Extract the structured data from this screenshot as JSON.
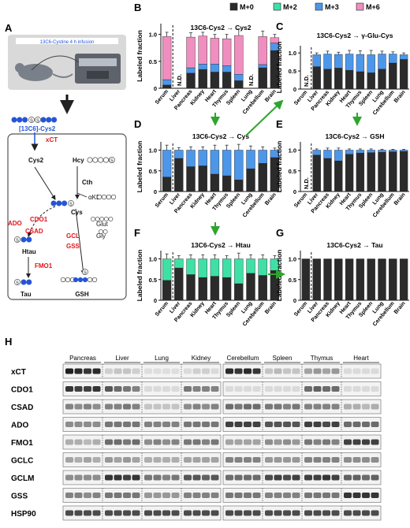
{
  "colors": {
    "m0": "#2b2b2b",
    "m2": "#3fe0a6",
    "m3": "#4d97ea",
    "m6": "#f08ec0",
    "red": "#e3141b",
    "green": "#2ea52e",
    "blue": "#2455d6",
    "grid": "#999999"
  },
  "legend": [
    {
      "label": "M+0",
      "color": "#2b2b2b"
    },
    {
      "label": "M+2",
      "color": "#3fe0a6"
    },
    {
      "label": "M+3",
      "color": "#4d97ea"
    },
    {
      "label": "M+6",
      "color": "#f08ec0"
    }
  ],
  "panels": {
    "A": "A",
    "B": "B",
    "C": "C",
    "D": "D",
    "E": "E",
    "F": "F",
    "G": "G",
    "H": "H"
  },
  "infusion": {
    "title": "13C6-Cystine 4 h infusion"
  },
  "pathway": {
    "cys2_label": "[13C6]-Cys2",
    "xct": "xCT",
    "cys2_in": "Cys2",
    "hcy": "Hcy",
    "cth": "Cth",
    "akb": "αKB",
    "cys": "Cys",
    "ado": "ADO",
    "cdo1": "CDO1",
    "csad": "CSAD",
    "htau": "Htau",
    "fmo1": "FMO1",
    "tau": "Tau",
    "gcl": "GCL",
    "gss": "GSS",
    "glut": "Glut",
    "gly": "Gly",
    "gsh": "GSH"
  },
  "chart_data": [
    {
      "panel": "B",
      "type": "bar",
      "title": "13C6-Cys2 → Cys2",
      "ylabel": "Labeled fraction",
      "ylim": [
        0,
        1.2
      ],
      "yticks": [
        "0",
        "0.5",
        "1.0"
      ],
      "categories": [
        "Serum",
        "Liver",
        "Pancreas",
        "Kidney",
        "Heart",
        "Thymus",
        "Spleen",
        "Lung",
        "Cerebellum",
        "Brain"
      ],
      "nd": [
        "N.D.",
        "N.D."
      ],
      "nd_index": [
        1,
        7
      ],
      "series": [
        {
          "name": "M+0",
          "values": [
            0.06,
            0,
            0.28,
            0.35,
            0.3,
            0.3,
            0.14,
            0,
            0.38,
            0.7
          ]
        },
        {
          "name": "M+3",
          "values": [
            0.1,
            0,
            0.1,
            0.1,
            0.15,
            0.12,
            0.12,
            0,
            0.06,
            0.14
          ]
        },
        {
          "name": "M+6",
          "values": [
            0.8,
            0,
            0.57,
            0.52,
            0.48,
            0.5,
            0.72,
            0,
            0.52,
            0.1
          ]
        }
      ],
      "errors": [
        0.08,
        0,
        0.08,
        0.07,
        0.07,
        0.08,
        0.12,
        0,
        0.1,
        0.06
      ]
    },
    {
      "panel": "C",
      "type": "bar",
      "title": "13C6-Cys2 → γ-Glu-Cys",
      "ylabel": "Labeled fraction",
      "ylim": [
        0,
        1.2
      ],
      "yticks": [
        "0",
        "0.5",
        "1.0"
      ],
      "categories": [
        "Serum",
        "Liver",
        "Pancreas",
        "Kidney",
        "Heart",
        "Thymus",
        "Spleen",
        "Lung",
        "Cerebellum",
        "Brain"
      ],
      "nd": [
        "N.D."
      ],
      "nd_index": [
        0
      ],
      "series": [
        {
          "name": "M+0",
          "values": [
            0,
            0.62,
            0.55,
            0.58,
            0.52,
            0.48,
            0.45,
            0.55,
            0.72,
            0.82
          ]
        },
        {
          "name": "M+3",
          "values": [
            0,
            0.33,
            0.42,
            0.38,
            0.45,
            0.48,
            0.5,
            0.42,
            0.25,
            0.13
          ]
        }
      ],
      "errors": [
        0,
        0.05,
        0.08,
        0.06,
        0.1,
        0.1,
        0.12,
        0.08,
        0.06,
        0.05
      ]
    },
    {
      "panel": "D",
      "type": "bar",
      "title": "13C6-Cys2 → Cys",
      "ylabel": "Labeled fraction",
      "ylim": [
        0,
        1.2
      ],
      "yticks": [
        "0",
        "0.5",
        "1.0"
      ],
      "categories": [
        "Serum",
        "Liver",
        "Pancreas",
        "Kidney",
        "Heart",
        "Thymus",
        "Spleen",
        "Lung",
        "Cerebellum",
        "Brain"
      ],
      "nd": [],
      "nd_index": [],
      "series": [
        {
          "name": "M+0",
          "values": [
            0.35,
            0.8,
            0.6,
            0.62,
            0.42,
            0.38,
            0.28,
            0.55,
            0.68,
            0.82
          ]
        },
        {
          "name": "M+3",
          "values": [
            0.65,
            0.2,
            0.4,
            0.38,
            0.58,
            0.62,
            0.72,
            0.45,
            0.32,
            0.18
          ]
        }
      ],
      "errors": [
        0.12,
        0.06,
        0.08,
        0.08,
        0.12,
        0.12,
        0.14,
        0.1,
        0.08,
        0.05
      ]
    },
    {
      "panel": "E",
      "type": "bar",
      "title": "13C6-Cys2 → GSH",
      "ylabel": "Labeled fraction",
      "ylim": [
        0,
        1.2
      ],
      "yticks": [
        "0",
        "0.5",
        "1.0"
      ],
      "categories": [
        "Serum",
        "Liver",
        "Pancreas",
        "Kidney",
        "Heart",
        "Thymus",
        "Spleen",
        "Lung",
        "Cerebellum",
        "Brain"
      ],
      "nd": [
        "N.D."
      ],
      "nd_index": [
        0
      ],
      "series": [
        {
          "name": "M+0",
          "values": [
            0,
            0.88,
            0.8,
            0.74,
            0.9,
            0.93,
            0.94,
            0.95,
            0.96,
            0.97
          ]
        },
        {
          "name": "M+3",
          "values": [
            0,
            0.12,
            0.2,
            0.26,
            0.1,
            0.07,
            0.06,
            0.05,
            0.04,
            0.03
          ]
        }
      ],
      "errors": [
        0,
        0.03,
        0.05,
        0.05,
        0.03,
        0.03,
        0.03,
        0.02,
        0.02,
        0.02
      ]
    },
    {
      "panel": "F",
      "type": "bar",
      "title": "13C6-Cys2 → Htau",
      "ylabel": "Labeled fraction",
      "ylim": [
        0,
        1.2
      ],
      "yticks": [
        "0",
        "0.5",
        "1.0"
      ],
      "categories": [
        "Serum",
        "Liver",
        "Pancreas",
        "Kidney",
        "Heart",
        "Thymus",
        "Spleen",
        "Lung",
        "Cerebellum",
        "Brain"
      ],
      "nd": [],
      "nd_index": [],
      "series": [
        {
          "name": "M+0",
          "values": [
            0.48,
            0.78,
            0.62,
            0.55,
            0.58,
            0.55,
            0.4,
            0.65,
            0.6,
            0.72
          ]
        },
        {
          "name": "M+2",
          "values": [
            0.52,
            0.22,
            0.38,
            0.45,
            0.42,
            0.45,
            0.6,
            0.35,
            0.4,
            0.28
          ]
        }
      ],
      "errors": [
        0.12,
        0.08,
        0.1,
        0.1,
        0.1,
        0.08,
        0.14,
        0.1,
        0.1,
        0.08
      ]
    },
    {
      "panel": "G",
      "type": "bar",
      "title": "13C6-Cys2 → Tau",
      "ylabel": "Labeled fraction",
      "ylim": [
        0,
        1.2
      ],
      "yticks": [
        "0",
        "0.5",
        "1.0"
      ],
      "categories": [
        "Serum",
        "Liver",
        "Pancreas",
        "Kidney",
        "Heart",
        "Thymus",
        "Spleen",
        "Lung",
        "Cerebellum",
        "Brain"
      ],
      "nd": [],
      "nd_index": [],
      "series": [
        {
          "name": "M+0",
          "values": [
            1,
            1,
            1,
            1,
            1,
            1,
            1,
            1,
            1,
            1
          ]
        }
      ],
      "errors": [
        0,
        0,
        0,
        0,
        0,
        0,
        0,
        0,
        0,
        0
      ]
    }
  ],
  "blot": {
    "groups_left": [
      "Pancreas",
      "Liver",
      "Lung",
      "Kidney"
    ],
    "groups_right": [
      "Cerebellum",
      "Spleen",
      "Thymus",
      "Heart"
    ],
    "proteins": [
      "xCT",
      "CDO1",
      "CSAD",
      "ADO",
      "FMO1",
      "GCLC",
      "GCLM",
      "GSS",
      "HSP90"
    ],
    "intensity": {
      "xCT": [
        [
          0.95,
          0.9,
          0.85,
          0.9
        ],
        [
          0.15,
          0.2,
          0.2,
          0.15
        ],
        [
          0.08,
          0.08,
          0.08,
          0.08
        ],
        [
          0.1,
          0.15,
          0.15,
          0.1
        ],
        [
          0.9,
          0.85,
          0.9,
          0.85
        ],
        [
          0.2,
          0.25,
          0.2,
          0.2
        ],
        [
          0.35,
          0.4,
          0.35,
          0.4
        ],
        [
          0.1,
          0.1,
          0.1,
          0.1
        ]
      ],
      "CDO1": [
        [
          0.85,
          0.8,
          0.8,
          0.85
        ],
        [
          0.7,
          0.6,
          0.55,
          0.5
        ],
        [
          0.1,
          0.1,
          0.1,
          0.1
        ],
        [
          0.55,
          0.5,
          0.5,
          0.5
        ],
        [
          0.1,
          0.1,
          0.1,
          0.1
        ],
        [
          0.1,
          0.1,
          0.1,
          0.1
        ],
        [
          0.6,
          0.65,
          0.6,
          0.6
        ],
        [
          0.1,
          0.1,
          0.1,
          0.1
        ]
      ],
      "CSAD": [
        [
          0.5,
          0.45,
          0.5,
          0.45
        ],
        [
          0.5,
          0.5,
          0.55,
          0.5
        ],
        [
          0.2,
          0.2,
          0.2,
          0.2
        ],
        [
          0.45,
          0.5,
          0.45,
          0.5
        ],
        [
          0.6,
          0.55,
          0.6,
          0.6
        ],
        [
          0.55,
          0.55,
          0.5,
          0.55
        ],
        [
          0.5,
          0.5,
          0.5,
          0.5
        ],
        [
          0.3,
          0.3,
          0.25,
          0.3
        ]
      ],
      "ADO": [
        [
          0.45,
          0.45,
          0.45,
          0.45
        ],
        [
          0.55,
          0.55,
          0.55,
          0.55
        ],
        [
          0.5,
          0.5,
          0.5,
          0.5
        ],
        [
          0.55,
          0.55,
          0.55,
          0.55
        ],
        [
          0.8,
          0.8,
          0.8,
          0.8
        ],
        [
          0.7,
          0.7,
          0.7,
          0.7
        ],
        [
          0.8,
          0.8,
          0.75,
          0.8
        ],
        [
          0.6,
          0.6,
          0.6,
          0.6
        ]
      ],
      "FMO1": [
        [
          0.3,
          0.3,
          0.25,
          0.3
        ],
        [
          0.6,
          0.6,
          0.55,
          0.6
        ],
        [
          0.45,
          0.5,
          0.45,
          0.5
        ],
        [
          0.55,
          0.55,
          0.5,
          0.55
        ],
        [
          0.35,
          0.35,
          0.35,
          0.35
        ],
        [
          0.45,
          0.4,
          0.45,
          0.4
        ],
        [
          0.55,
          0.5,
          0.55,
          0.5
        ],
        [
          0.8,
          0.8,
          0.8,
          0.8
        ]
      ],
      "GCLC": [
        [
          0.35,
          0.3,
          0.35,
          0.3
        ],
        [
          0.4,
          0.35,
          0.4,
          0.35
        ],
        [
          0.3,
          0.3,
          0.3,
          0.3
        ],
        [
          0.35,
          0.35,
          0.35,
          0.35
        ],
        [
          0.5,
          0.5,
          0.5,
          0.5
        ],
        [
          0.4,
          0.4,
          0.4,
          0.4
        ],
        [
          0.5,
          0.5,
          0.5,
          0.5
        ],
        [
          0.45,
          0.45,
          0.45,
          0.45
        ]
      ],
      "GCLM": [
        [
          0.45,
          0.45,
          0.45,
          0.45
        ],
        [
          0.85,
          0.85,
          0.8,
          0.85
        ],
        [
          0.55,
          0.55,
          0.5,
          0.55
        ],
        [
          0.7,
          0.7,
          0.65,
          0.7
        ],
        [
          0.6,
          0.6,
          0.6,
          0.6
        ],
        [
          0.75,
          0.8,
          0.75,
          0.8
        ],
        [
          0.8,
          0.8,
          0.85,
          0.8
        ],
        [
          0.65,
          0.65,
          0.6,
          0.65
        ]
      ],
      "GSS": [
        [
          0.5,
          0.5,
          0.45,
          0.5
        ],
        [
          0.55,
          0.55,
          0.55,
          0.55
        ],
        [
          0.4,
          0.4,
          0.4,
          0.4
        ],
        [
          0.5,
          0.5,
          0.5,
          0.5
        ],
        [
          0.55,
          0.55,
          0.55,
          0.55
        ],
        [
          0.5,
          0.5,
          0.5,
          0.5
        ],
        [
          0.55,
          0.55,
          0.55,
          0.55
        ],
        [
          0.85,
          0.85,
          0.85,
          0.85
        ]
      ],
      "HSP90": [
        [
          0.75,
          0.75,
          0.75,
          0.75
        ],
        [
          0.75,
          0.75,
          0.75,
          0.75
        ],
        [
          0.75,
          0.75,
          0.75,
          0.75
        ],
        [
          0.75,
          0.75,
          0.75,
          0.75
        ],
        [
          0.75,
          0.75,
          0.75,
          0.75
        ],
        [
          0.75,
          0.75,
          0.75,
          0.75
        ],
        [
          0.75,
          0.75,
          0.75,
          0.75
        ],
        [
          0.75,
          0.75,
          0.75,
          0.75
        ]
      ]
    }
  }
}
